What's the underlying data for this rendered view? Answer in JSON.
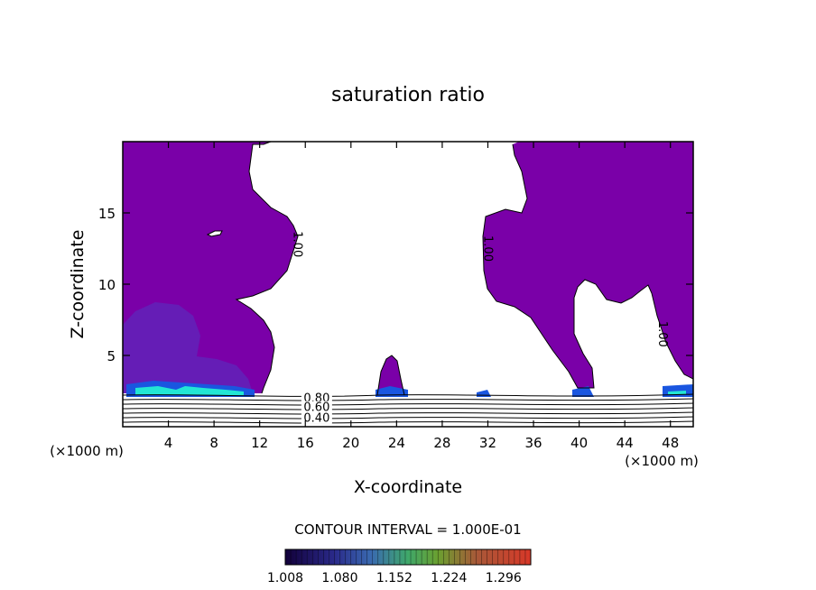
{
  "chart_data": {
    "type": "contour",
    "title": "saturation ratio",
    "xlabel": "X-coordinate",
    "ylabel": "Z-coordinate",
    "x_unit_left": "(×1000 m)",
    "x_unit_right": "(×1000 m)",
    "xlim": [
      0,
      50
    ],
    "ylim": [
      0,
      20
    ],
    "xticks": [
      "4",
      "8",
      "12",
      "16",
      "20",
      "24",
      "28",
      "32",
      "36",
      "40",
      "44",
      "48"
    ],
    "yticks": [
      "5",
      "10",
      "15"
    ],
    "contour_interval_text": "CONTOUR INTERVAL = 1.000E-01",
    "contour_labels": [
      {
        "text": "1.00",
        "x": 15.0,
        "y": 12.8,
        "rotate": 90
      },
      {
        "text": "1.00",
        "x": 31.7,
        "y": 12.5,
        "rotate": 90
      },
      {
        "text": "1.00",
        "x": 47.0,
        "y": 6.5,
        "rotate": 90
      },
      {
        "text": "0.80",
        "x": 17.0,
        "y": 1.75,
        "rotate": 0
      },
      {
        "text": "0.60",
        "x": 17.0,
        "y": 1.1,
        "rotate": 0
      },
      {
        "text": "0.40",
        "x": 17.0,
        "y": 0.35,
        "rotate": 0
      }
    ],
    "colorbar": {
      "min": 1.008,
      "max": 1.332,
      "labels": [
        "1.008",
        "1.080",
        "1.152",
        "1.224",
        "1.296"
      ]
    },
    "colors": {
      "saturated": "#7a00a8",
      "dark_region": "#6222b8",
      "blue": "#1a56e0",
      "cyan": "#22e6d4"
    }
  }
}
